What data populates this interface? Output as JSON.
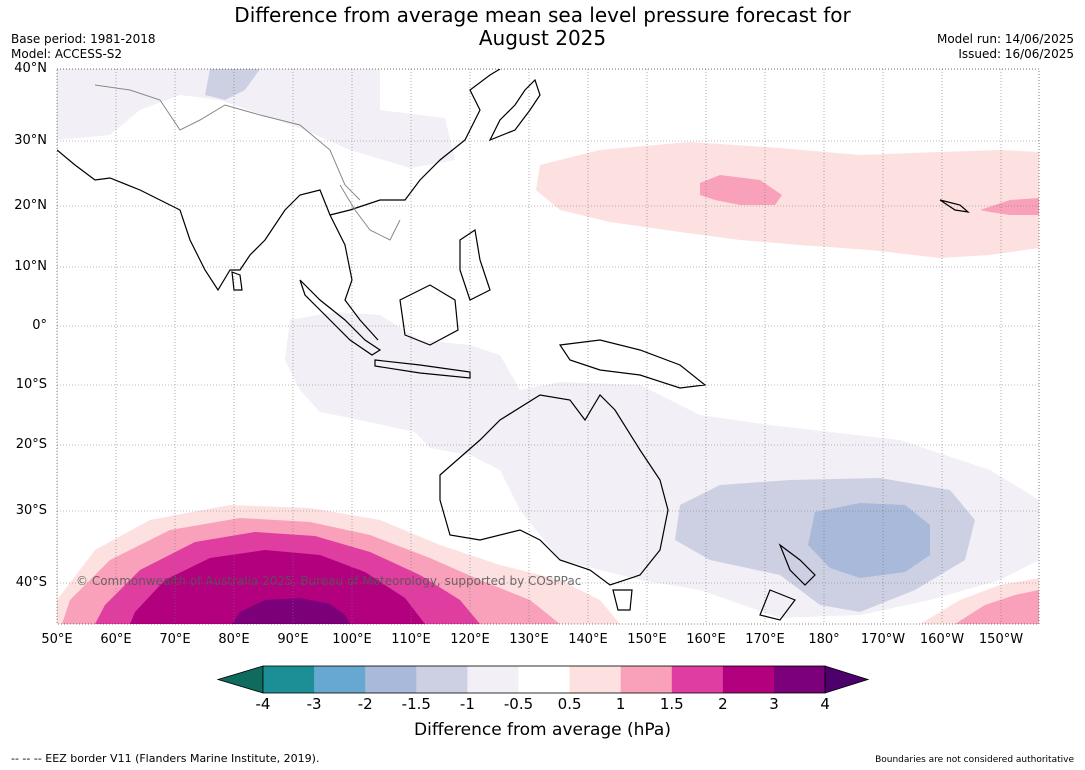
{
  "title_line1": "Difference from average mean sea level pressure forecast for",
  "title_line2": "August 2025",
  "base_period": "Base period: 1981-2018",
  "model": "Model: ACCESS-S2",
  "model_run": "Model run: 14/06/2025",
  "issued": "Issued: 16/06/2025",
  "lat_labels": [
    "40°N",
    "30°N",
    "20°N",
    "10°N",
    "0°",
    "10°S",
    "20°S",
    "30°S",
    "40°S"
  ],
  "lon_labels": [
    "50°E",
    "60°E",
    "70°E",
    "80°E",
    "90°E",
    "100°E",
    "110°E",
    "120°E",
    "130°E",
    "140°E",
    "150°E",
    "160°E",
    "170°E",
    "180°",
    "170°W",
    "160°W",
    "150°W"
  ],
  "copyright": "© Commonwealth of Australia 2025, Bureau of Meteorology, supported by COSPPac",
  "colorbar": {
    "labels": [
      "-4",
      "-3",
      "-2",
      "-1.5",
      "-1",
      "-0.5",
      "0.5",
      "1",
      "1.5",
      "2",
      "3",
      "4"
    ],
    "colors": {
      "lt_-4": "#0e6b5e",
      "-4_-3": "#1c8f96",
      "-3_-2": "#67a8d0",
      "-2_-1.5": "#a8b9d9",
      "-1.5_-1": "#cdd0e3",
      "-1_-0.5": "#f2eff6",
      "-0.5_0.5": "#ffffff",
      "0.5_1": "#fde0e0",
      "1_1.5": "#f9a1ba",
      "1.5_2": "#df3d9f",
      "2_3": "#b3007f",
      "3_4": "#7b007a",
      "gt_4": "#4d006b"
    },
    "title": "Difference from average (hPa)"
  },
  "footer_left": "--  --  -- EEZ border V11 (Flanders Marine Institute, 2019).",
  "footer_right": "Boundaries are not considered authoritative"
}
